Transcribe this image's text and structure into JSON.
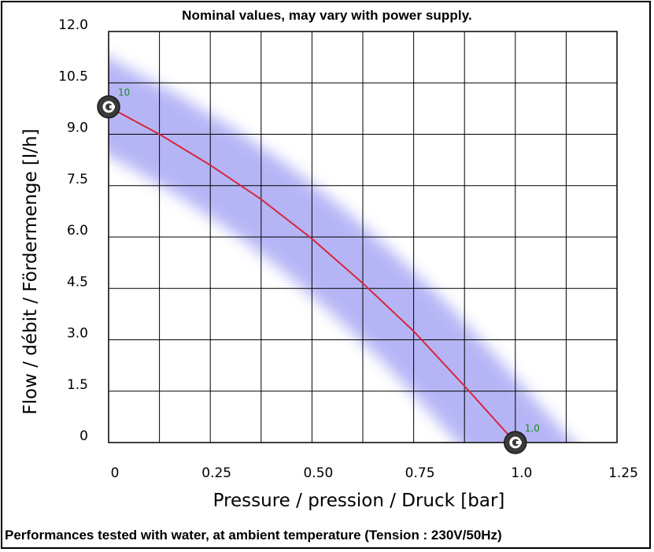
{
  "header_note": "Nominal values, may vary with power supply.",
  "footer_note": "Performances tested with water, at ambient temperature (Tension : 230V/50Hz)",
  "chart_data": {
    "type": "line",
    "title": "",
    "xlabel": "Pressure / pression / Druck [bar]",
    "ylabel": "Flow / débit / Fördermenge [l/h]",
    "xlim": [
      0,
      1.25
    ],
    "ylim": [
      0,
      12.0
    ],
    "x_ticks": [
      "0",
      "0.25",
      "0.50",
      "0.75",
      "1.0",
      "1.25"
    ],
    "y_ticks": [
      "0",
      "1.5",
      "3.0",
      "4.5",
      "6.0",
      "7.5",
      "9.0",
      "10.5",
      "12.0"
    ],
    "grid": true,
    "series": [
      {
        "color": "#d7263d",
        "x": [
          0,
          0.125,
          0.25,
          0.375,
          0.5,
          0.625,
          0.75,
          0.875,
          1.0
        ],
        "y": [
          9.8,
          9.0,
          8.1,
          7.1,
          5.95,
          4.65,
          3.25,
          1.65,
          0.0
        ]
      }
    ],
    "tolerance_band_color": "#a9a9f5",
    "markers": [
      {
        "x": 0,
        "y": 9.8,
        "label": "10"
      },
      {
        "x": 1.0,
        "y": 0.0,
        "label": "1.0"
      }
    ]
  }
}
